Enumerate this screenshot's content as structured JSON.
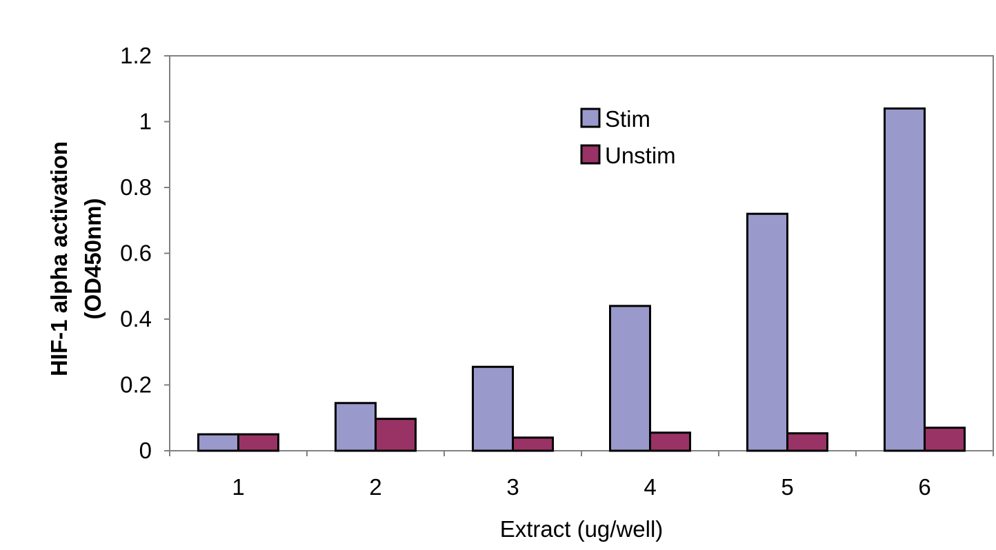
{
  "chart_data": {
    "type": "bar",
    "title": "",
    "xlabel": "Extract (ug/well)",
    "ylabel_lines": [
      "HIF-1 alpha activation",
      "(OD450nm)"
    ],
    "categories": [
      "1",
      "2",
      "3",
      "4",
      "5",
      "6"
    ],
    "series": [
      {
        "name": "Stim",
        "color": "#9999cc",
        "values": [
          0.05,
          0.145,
          0.255,
          0.44,
          0.72,
          1.04
        ]
      },
      {
        "name": "Unstim",
        "color": "#993366",
        "values": [
          0.05,
          0.097,
          0.04,
          0.055,
          0.053,
          0.07
        ]
      }
    ],
    "ylim": [
      0,
      1.2
    ],
    "yticks": [
      "0",
      "0.2",
      "0.4",
      "0.6",
      "0.8",
      "1",
      "1.2"
    ],
    "ytick_values": [
      0,
      0.2,
      0.4,
      0.6,
      0.8,
      1.0,
      1.2
    ],
    "grid": false,
    "legend_position": "upper-right inside plot"
  }
}
